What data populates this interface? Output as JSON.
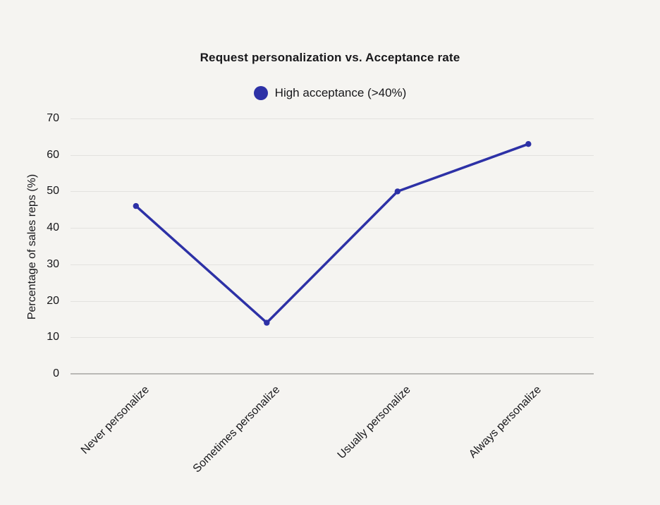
{
  "chart": {
    "title": "Request personalization vs. Acceptance rate",
    "legend": {
      "label": "High acceptance (>40%)"
    },
    "ylabel": "Percentage of sales reps (%)"
  },
  "chart_data": {
    "type": "line",
    "title": "Request personalization vs. Acceptance rate",
    "categories": [
      "Never personalize",
      "Sometimes personalize",
      "Usually personalize",
      "Always personalize"
    ],
    "series": [
      {
        "name": "High acceptance (>40%)",
        "values": [
          46,
          14,
          50,
          63
        ],
        "color": "#2d31a6"
      }
    ],
    "xlabel": "",
    "ylabel": "Percentage of sales reps (%)",
    "ylim": [
      0,
      70
    ],
    "yticks": [
      0,
      10,
      20,
      30,
      40,
      50,
      60,
      70
    ],
    "grid": true,
    "legend_position": "top"
  },
  "colors": {
    "background": "#f5f4f1",
    "gridline": "#e3e2df",
    "axis_line": "#b9b8b5",
    "text": "#17171a",
    "accent": "#2d31a6"
  }
}
